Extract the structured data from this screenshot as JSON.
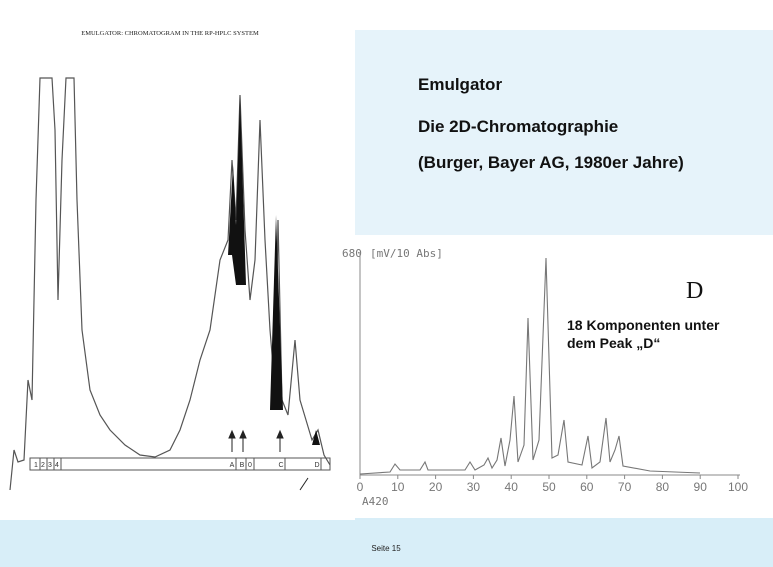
{
  "left_figure": {
    "title": "EMULGATOR: CHROMATOGRAM IN THE RP-HPLC SYSTEM",
    "segment_labels": [
      "1",
      "2",
      "3",
      "4",
      "A",
      "B",
      "0",
      "C",
      "D"
    ]
  },
  "heading": {
    "title": "Emulgator",
    "line1": "Die 2D-Chromatographie",
    "line2": "(Burger, Bayer AG, 1980er Jahre)"
  },
  "right_figure": {
    "y_label": "680",
    "y_unit": "[mV/10 Abs]",
    "x_ticks": [
      0,
      10,
      20,
      30,
      40,
      50,
      60,
      70,
      80,
      90,
      100
    ],
    "x_label": "A420",
    "peak_letter": "D",
    "note_line1": "18 Komponenten unter",
    "note_line2": "dem Peak „D“"
  },
  "footer": {
    "page": "Seite 15"
  }
}
